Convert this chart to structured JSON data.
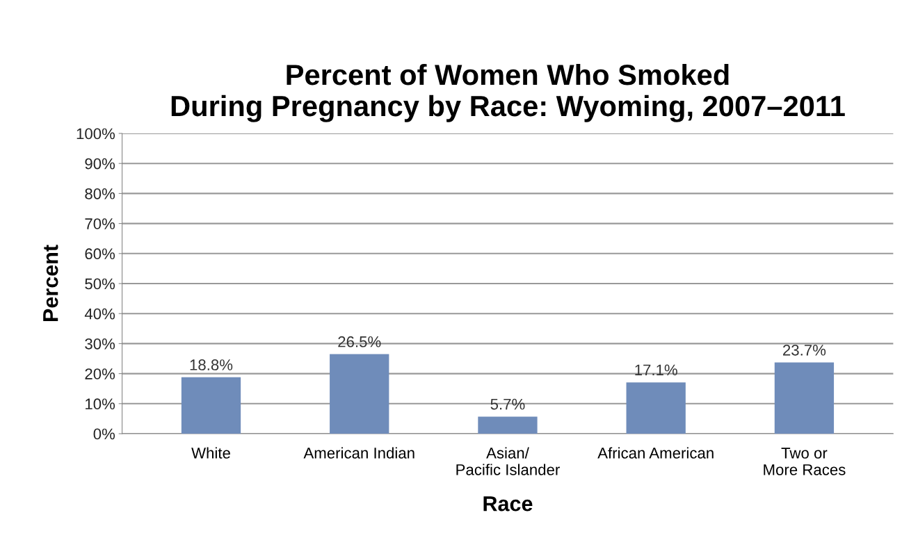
{
  "chart_data": {
    "type": "bar",
    "title": "Percent of Women Who Smoked\nDuring Pregnancy by Race: Wyoming, 2007–2011",
    "xlabel": "Race",
    "ylabel": "Percent",
    "categories": [
      "White",
      "American Indian",
      "Asian/\nPacific Islander",
      "African American",
      "Two or\nMore Races"
    ],
    "values": [
      18.8,
      26.5,
      5.7,
      17.1,
      23.7
    ],
    "value_labels": [
      "18.8%",
      "26.5%",
      "5.7%",
      "17.1%",
      "23.7%"
    ],
    "color": "#6f8cba",
    "ylim": [
      0,
      100
    ],
    "yticks": [
      {
        "value": 0,
        "label": "0%"
      },
      {
        "value": 10,
        "label": "10%"
      },
      {
        "value": 20,
        "label": "20%"
      },
      {
        "value": 30,
        "label": "30%"
      },
      {
        "value": 40,
        "label": "40%"
      },
      {
        "value": 50,
        "label": "50%"
      },
      {
        "value": 60,
        "label": "60%"
      },
      {
        "value": 70,
        "label": "70%"
      },
      {
        "value": 80,
        "label": "80%"
      },
      {
        "value": 90,
        "label": "90%"
      },
      {
        "value": 100,
        "label": "100%"
      }
    ],
    "grid": "y",
    "legend": false
  }
}
